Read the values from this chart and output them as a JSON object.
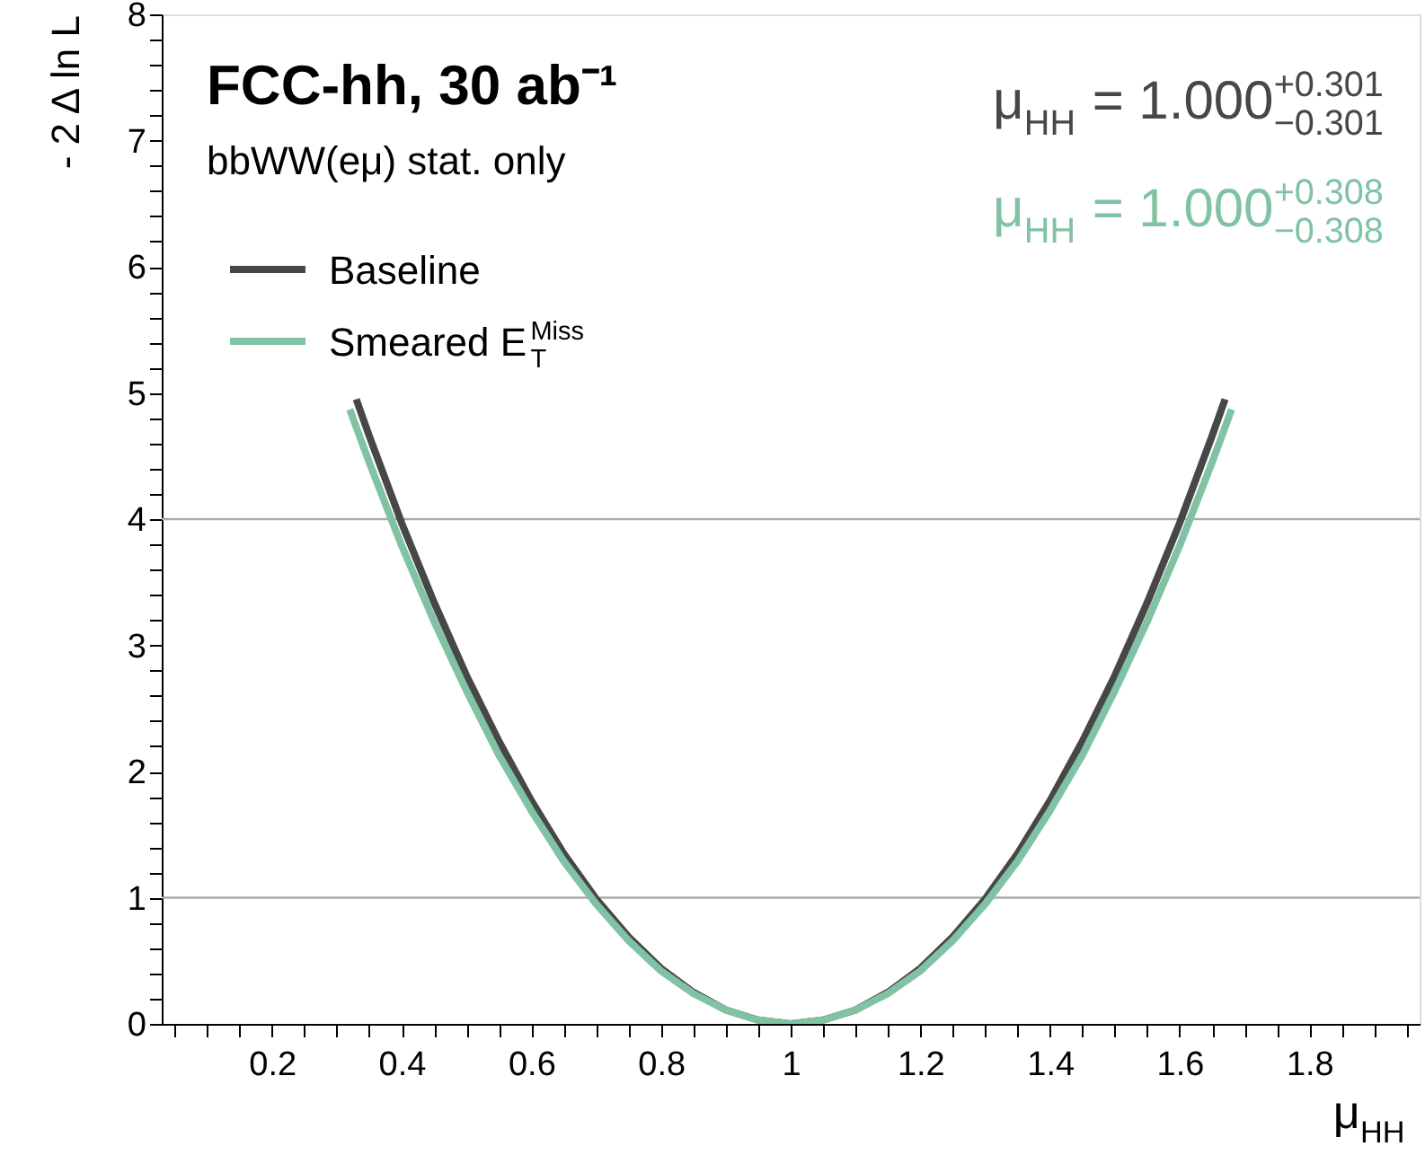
{
  "chart_data": {
    "type": "line",
    "title": "FCC-hh, 30 ab⁻¹",
    "subtitle": "bbWW(eμ) stat. only",
    "xlabel": "μ$_{HH}$",
    "ylabel": "- 2 Δ ln L",
    "annotations": [
      "μ$_{HH}$ = 1.000$^{+0.301}$$_{−0.301}$",
      "μ$_{HH}$ = 1.000$^{+0.308}$$_{−0.308}$"
    ],
    "legend": "top left",
    "grid": false,
    "line_style": "solid",
    "marker": "none",
    "xlim": [
      0.03,
      1.97
    ],
    "ylim": [
      0,
      8
    ],
    "xticks": [
      0.2,
      0.4,
      0.6,
      0.8,
      1,
      1.2,
      1.4,
      1.6,
      1.8
    ],
    "yticks": [
      0,
      1,
      2,
      3,
      4,
      5,
      6,
      7,
      8
    ],
    "ref_lines": [
      {
        "axis": "y",
        "value": 1,
        "color": "#aaaaaa"
      },
      {
        "axis": "y",
        "value": 4,
        "color": "#aaaaaa"
      }
    ],
    "series": [
      {
        "name": "Baseline",
        "color": "#474747",
        "x": [
          0.33,
          0.35,
          0.4,
          0.45,
          0.5,
          0.55,
          0.6,
          0.65,
          0.7,
          0.75,
          0.8,
          0.85,
          0.9,
          0.95,
          1.0,
          1.05,
          1.1,
          1.15,
          1.2,
          1.25,
          1.3,
          1.35,
          1.4,
          1.45,
          1.5,
          1.55,
          1.6,
          1.65,
          1.67
        ],
        "values": [
          4.95,
          4.66,
          3.97,
          3.34,
          2.76,
          2.24,
          1.77,
          1.35,
          0.99,
          0.69,
          0.44,
          0.25,
          0.11,
          0.03,
          0,
          0.03,
          0.11,
          0.25,
          0.44,
          0.69,
          0.99,
          1.35,
          1.77,
          2.24,
          2.76,
          3.34,
          3.97,
          4.66,
          4.95
        ]
      },
      {
        "name": "Smeared E$^{Miss}$$_{T}$",
        "color": "#80c2a4",
        "x": [
          0.32,
          0.35,
          0.4,
          0.45,
          0.5,
          0.55,
          0.6,
          0.65,
          0.7,
          0.75,
          0.8,
          0.85,
          0.9,
          0.95,
          1.0,
          1.05,
          1.1,
          1.15,
          1.2,
          1.25,
          1.3,
          1.35,
          1.4,
          1.45,
          1.5,
          1.55,
          1.6,
          1.65,
          1.68
        ],
        "values": [
          4.87,
          4.45,
          3.79,
          3.19,
          2.64,
          2.13,
          1.69,
          1.29,
          0.95,
          0.66,
          0.42,
          0.24,
          0.11,
          0.03,
          0,
          0.03,
          0.11,
          0.24,
          0.42,
          0.66,
          0.95,
          1.29,
          1.69,
          2.13,
          2.64,
          3.19,
          3.79,
          4.45,
          4.87
        ]
      }
    ]
  }
}
